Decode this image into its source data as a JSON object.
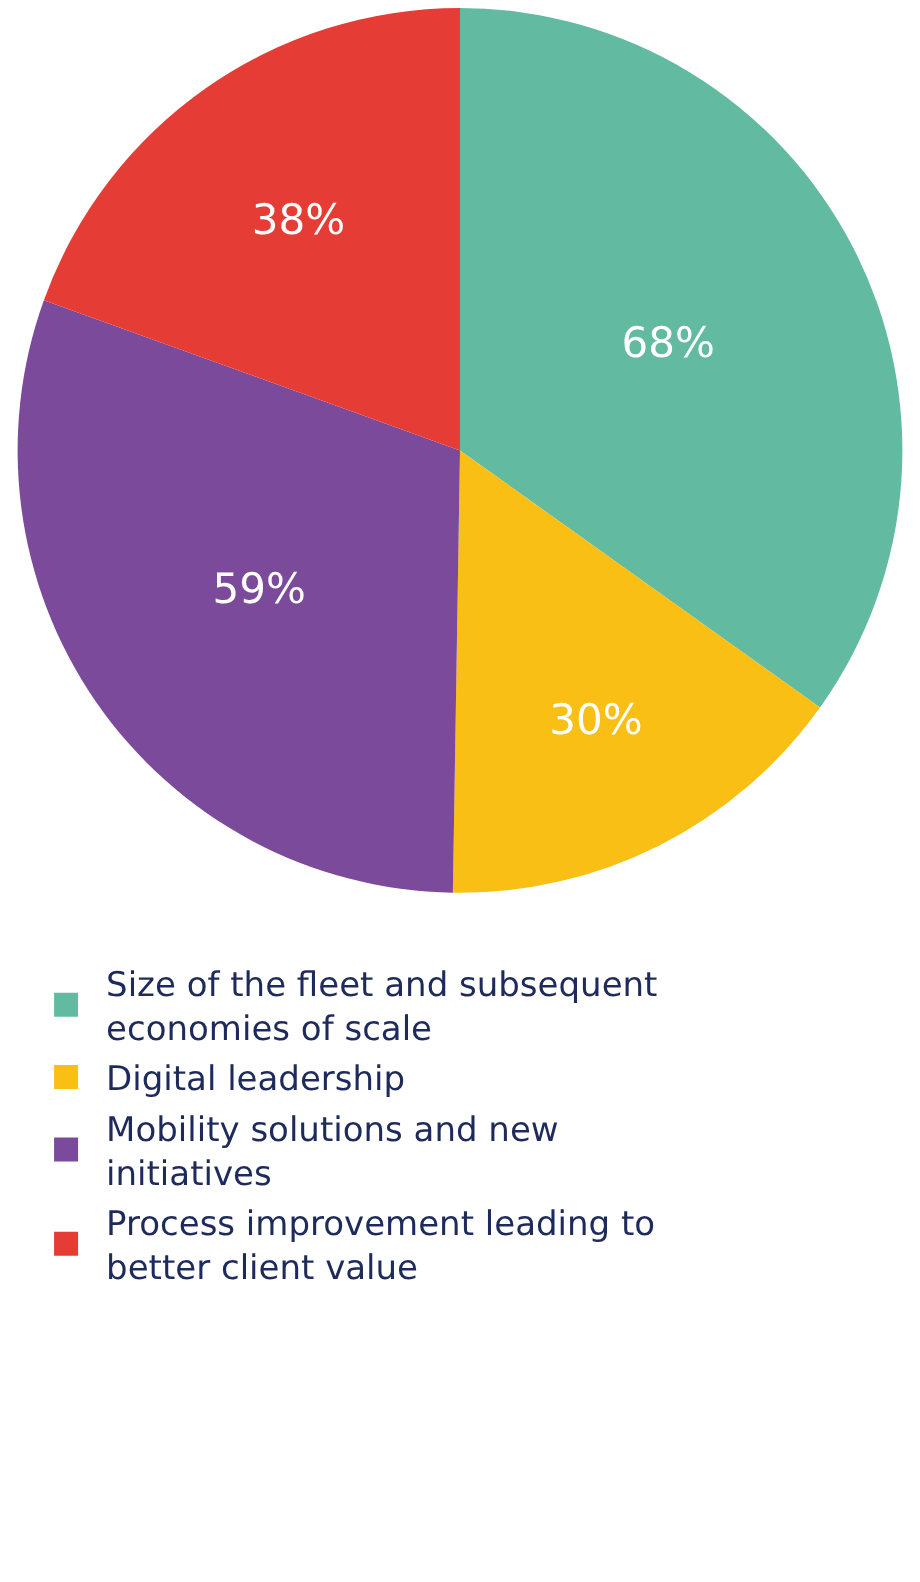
{
  "chart_data": {
    "type": "pie",
    "categories": [
      "Size of the fleet and subsequent economies of scale",
      "Digital leadership",
      "Mobility solutions and new initiatives",
      "Process improvement leading to better client value"
    ],
    "values": [
      68,
      30,
      59,
      38
    ],
    "value_labels": [
      "68%",
      "30%",
      "59%",
      "38%"
    ],
    "colors": [
      "#62bba1",
      "#f9bf14",
      "#7b4a9a",
      "#e63c36"
    ],
    "legend": "bottom"
  }
}
